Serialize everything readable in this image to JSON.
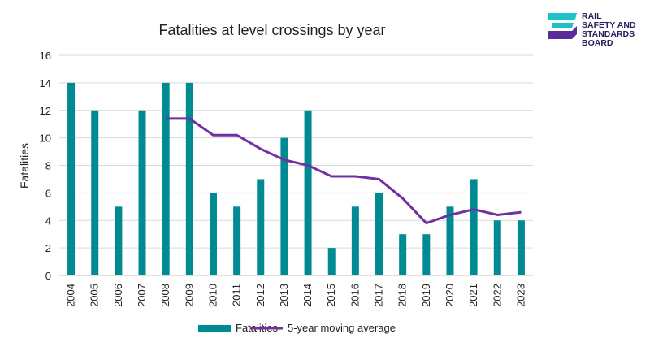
{
  "chart_data": {
    "type": "bar",
    "title": "Fatalities at level crossings by year",
    "xlabel": "",
    "ylabel": "Fatalities",
    "ylim": [
      0,
      16
    ],
    "yticks": [
      "0",
      "2",
      "4",
      "6",
      "8",
      "10",
      "12",
      "14",
      "16"
    ],
    "categories": [
      "2004",
      "2005",
      "2006",
      "2007",
      "2008",
      "2009",
      "2010",
      "2011",
      "2012",
      "2013",
      "2014",
      "2015",
      "2016",
      "2017",
      "2018",
      "2019",
      "2020",
      "2021",
      "2022",
      "2023"
    ],
    "series": [
      {
        "name": "Fatalities",
        "type": "bar",
        "color": "#008b93",
        "values": [
          14,
          12,
          5,
          12,
          14,
          14,
          6,
          5,
          7,
          10,
          12,
          2,
          5,
          6,
          3,
          3,
          5,
          7,
          4,
          4
        ]
      },
      {
        "name": "5-year moving average",
        "type": "line",
        "color": "#7030a0",
        "values": [
          null,
          null,
          null,
          null,
          11.4,
          11.4,
          10.2,
          10.2,
          9.2,
          8.4,
          8.0,
          7.2,
          7.2,
          7.0,
          5.6,
          3.8,
          4.4,
          4.8,
          4.4,
          4.6
        ]
      }
    ],
    "gridlines": true,
    "legend": "bottom"
  },
  "logo": {
    "lines": [
      "RAIL",
      "SAFETY AND",
      "STANDARDS",
      "BOARD"
    ],
    "colors": {
      "teal": "#1fc1c8",
      "purple": "#5b2b9a"
    }
  }
}
